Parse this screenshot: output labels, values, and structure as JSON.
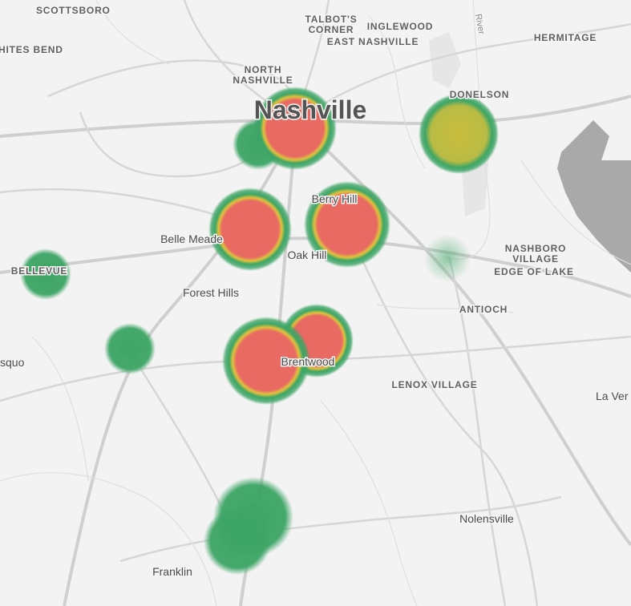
{
  "labels": {
    "scottsboro": "SCOTTSBORO",
    "whites_bend": "HITES BEND",
    "talbots_corner": [
      "TALBOT'S",
      "CORNER"
    ],
    "inglewood": "INGLEWOOD",
    "east_nashville": "EAST NASHVILLE",
    "hermitage": "HERMITAGE",
    "river": "River",
    "north_nashville": [
      "NORTH",
      "NASHVILLE"
    ],
    "nashville": "Nashville",
    "donelson": "DONELSON",
    "berry_hill": "Berry Hill",
    "belle_meade": "Belle Meade",
    "oak_hill": "Oak Hill",
    "bellevue": "BELLEVUE",
    "nashboro_village": [
      "NASHBORO",
      "VILLAGE"
    ],
    "edge_of_lake": "EDGE OF LAKE",
    "forest_hills": "Forest Hills",
    "antioch": "ANTIOCH",
    "squo": "squo",
    "brentwood": "Brentwood",
    "lenox_village": "LENOX VILLAGE",
    "la_vergne": "La Ver",
    "nolensville": "Nolensville",
    "franklin": "Franklin"
  }
}
